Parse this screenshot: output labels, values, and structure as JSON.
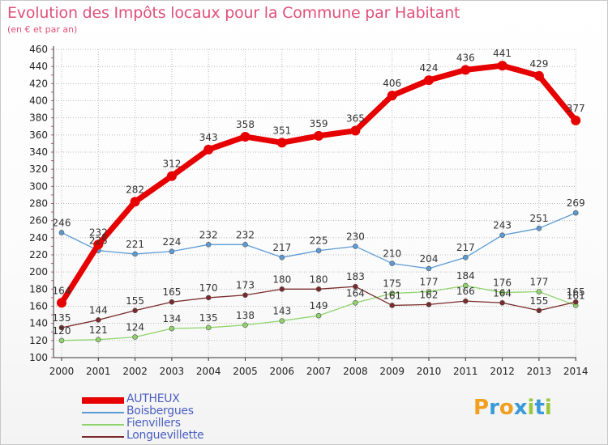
{
  "title": "Evolution des Impôts locaux pour la Commune par Habitant",
  "subtitle": "(en € et par an)",
  "logo": {
    "text": "Proxiti",
    "letters": [
      {
        "ch": "P",
        "color": "#f0a020"
      },
      {
        "ch": "r",
        "color": "#3a9ad9"
      },
      {
        "ch": "o",
        "color": "#f0a020"
      },
      {
        "ch": "x",
        "color": "#3a9ad9"
      },
      {
        "ch": "i",
        "color": "#9ac83a"
      },
      {
        "ch": "t",
        "color": "#3a9ad9"
      },
      {
        "ch": "i",
        "color": "#9ac83a"
      }
    ]
  },
  "chart_data": {
    "type": "line",
    "title": "Evolution des Impôts locaux pour la Commune par Habitant",
    "subtitle": "(en € et par an)",
    "xlabel": "",
    "ylabel": "",
    "ylim": [
      100,
      460
    ],
    "yticks": [
      100,
      120,
      140,
      160,
      180,
      200,
      220,
      240,
      260,
      280,
      300,
      320,
      340,
      360,
      380,
      400,
      420,
      440,
      460
    ],
    "grid": true,
    "legend_position": "bottom-left",
    "x": [
      "2000",
      "2001",
      "2002",
      "2003",
      "2004",
      "2005",
      "2006",
      "2007",
      "2008",
      "2009",
      "2010",
      "2011",
      "2012",
      "2013",
      "2014"
    ],
    "series": [
      {
        "name": "AUTHEUX",
        "color": "#e60000",
        "values": [
          164,
          232,
          282,
          312,
          343,
          358,
          351,
          359,
          365,
          406,
          424,
          436,
          441,
          429,
          377
        ]
      },
      {
        "name": "Boisbergues",
        "color": "#5b9bd5",
        "values": [
          246,
          225,
          221,
          224,
          232,
          232,
          217,
          225,
          230,
          210,
          204,
          217,
          243,
          251,
          269
        ]
      },
      {
        "name": "Fienvillers",
        "color": "#8fd46a",
        "values": [
          120,
          121,
          124,
          134,
          135,
          138,
          143,
          149,
          164,
          175,
          177,
          184,
          176,
          177,
          161
        ]
      },
      {
        "name": "Longuevillette",
        "color": "#7a2a2a",
        "values": [
          135,
          144,
          155,
          165,
          170,
          173,
          180,
          180,
          183,
          161,
          162,
          166,
          164,
          155,
          165
        ]
      }
    ]
  }
}
